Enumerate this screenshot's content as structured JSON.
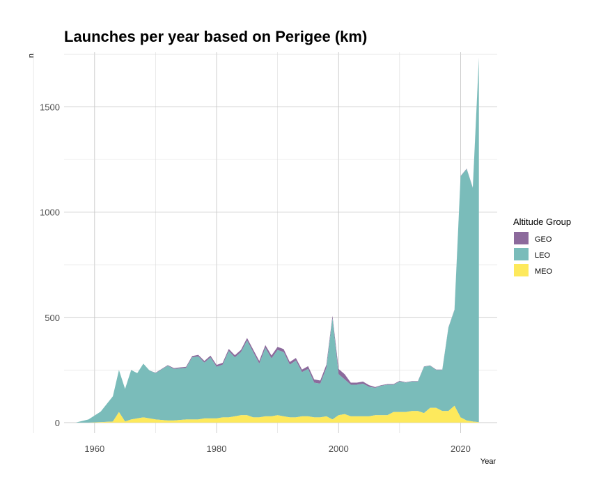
{
  "chart_data": {
    "type": "area",
    "stacked": true,
    "title": "Launches per year based on Perigee (km)",
    "xlabel": "Year",
    "ylabel": "n",
    "xlim": [
      1955,
      2026
    ],
    "ylim": [
      -50,
      1760
    ],
    "x_ticks": [
      1960,
      1980,
      2000,
      2020
    ],
    "y_ticks": [
      0,
      500,
      1000,
      1500
    ],
    "grid": true,
    "legend": {
      "title": "Altitude Group",
      "position": "right"
    },
    "series": [
      {
        "name": "GEO",
        "color": "#8c6a9c",
        "x": [
          1957,
          1959,
          1961,
          1963,
          1964,
          1965,
          1966,
          1967,
          1968,
          1969,
          1970,
          1972,
          1973,
          1975,
          1976,
          1977,
          1978,
          1979,
          1980,
          1981,
          1982,
          1983,
          1984,
          1985,
          1986,
          1987,
          1988,
          1989,
          1990,
          1991,
          1992,
          1993,
          1994,
          1995,
          1996,
          1997,
          1998,
          1999,
          2000,
          2001,
          2002,
          2003,
          2004,
          2005,
          2006,
          2007,
          2008,
          2009,
          2010,
          2011,
          2012,
          2013,
          2014,
          2015,
          2016,
          2017,
          2018,
          2019,
          2020,
          2021,
          2022,
          2023
        ],
        "values": [
          0,
          0,
          0,
          0,
          0,
          0,
          0,
          0,
          0,
          0,
          2,
          3,
          4,
          5,
          6,
          7,
          8,
          8,
          9,
          9,
          10,
          10,
          11,
          12,
          12,
          13,
          13,
          14,
          15,
          14,
          13,
          12,
          12,
          13,
          15,
          15,
          15,
          12,
          25,
          25,
          10,
          10,
          10,
          8,
          4,
          3,
          3,
          3,
          3,
          2,
          2,
          2,
          2,
          2,
          2,
          2,
          2,
          2,
          2,
          2,
          2,
          2
        ]
      },
      {
        "name": "LEO",
        "color": "#7abcba",
        "x": [
          1957,
          1959,
          1961,
          1963,
          1964,
          1965,
          1966,
          1967,
          1968,
          1969,
          1970,
          1972,
          1973,
          1975,
          1976,
          1977,
          1978,
          1979,
          1980,
          1981,
          1982,
          1983,
          1984,
          1985,
          1986,
          1987,
          1988,
          1989,
          1990,
          1991,
          1992,
          1993,
          1994,
          1995,
          1996,
          1997,
          1998,
          1999,
          2000,
          2001,
          2002,
          2003,
          2004,
          2005,
          2006,
          2007,
          2008,
          2009,
          2010,
          2011,
          2012,
          2013,
          2014,
          2015,
          2016,
          2017,
          2018,
          2019,
          2020,
          2021,
          2022,
          2023
        ],
        "values": [
          1,
          15,
          50,
          120,
          200,
          155,
          235,
          215,
          255,
          228,
          220,
          260,
          245,
          245,
          295,
          300,
          265,
          290,
          245,
          250,
          315,
          280,
          300,
          355,
          310,
          255,
          325,
          275,
          310,
          305,
          250,
          270,
          210,
          225,
          165,
          160,
          230,
          480,
          195,
          165,
          150,
          150,
          155,
          140,
          130,
          140,
          145,
          130,
          145,
          140,
          140,
          140,
          220,
          200,
          180,
          195,
          395,
          455,
          1145,
          1195,
          1110,
          1730
        ]
      },
      {
        "name": "MEO",
        "color": "#fde95c",
        "x": [
          1957,
          1959,
          1961,
          1963,
          1964,
          1965,
          1966,
          1967,
          1968,
          1969,
          1970,
          1972,
          1973,
          1975,
          1976,
          1977,
          1978,
          1979,
          1980,
          1981,
          1982,
          1983,
          1984,
          1985,
          1986,
          1987,
          1988,
          1989,
          1990,
          1991,
          1992,
          1993,
          1994,
          1995,
          1996,
          1997,
          1998,
          1999,
          2000,
          2001,
          2002,
          2003,
          2004,
          2005,
          2006,
          2007,
          2008,
          2009,
          2010,
          2011,
          2012,
          2013,
          2014,
          2015,
          2016,
          2017,
          2018,
          2019,
          2020,
          2021,
          2022,
          2023
        ],
        "values": [
          0,
          0,
          2,
          5,
          50,
          5,
          15,
          20,
          25,
          20,
          15,
          10,
          10,
          15,
          15,
          15,
          20,
          20,
          20,
          25,
          25,
          30,
          35,
          35,
          25,
          25,
          30,
          30,
          35,
          30,
          25,
          25,
          30,
          30,
          25,
          25,
          30,
          15,
          35,
          40,
          30,
          30,
          30,
          30,
          35,
          35,
          35,
          50,
          50,
          50,
          55,
          55,
          45,
          70,
          70,
          55,
          55,
          80,
          25,
          10,
          5,
          2
        ]
      }
    ]
  }
}
